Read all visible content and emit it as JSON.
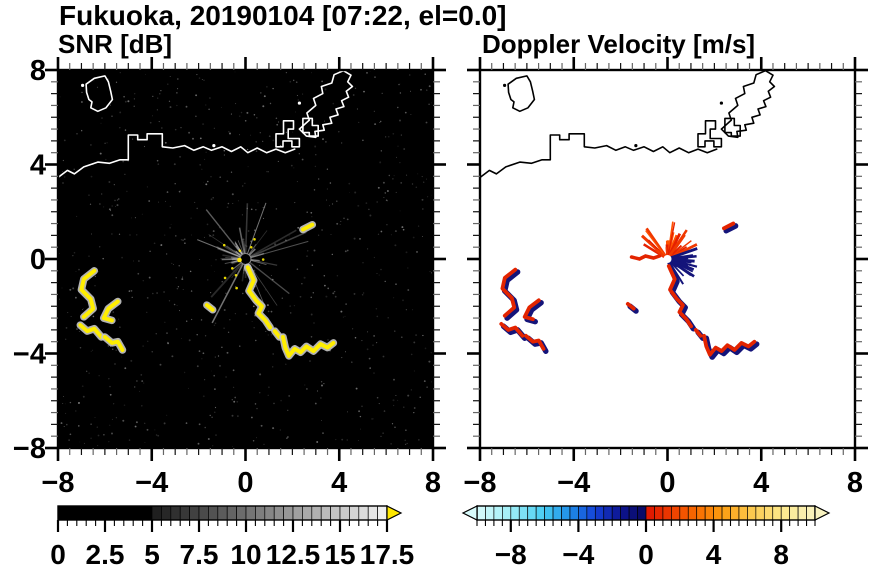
{
  "title": "Fukuoka, 20190104 [07:22, el=0.0]",
  "chart_data": {
    "type": "heatmap",
    "subtype": "radar_ppi_pair",
    "x_range": [
      -8,
      8
    ],
    "y_range": [
      -8,
      8
    ],
    "x_tick_values": [
      -8,
      -4,
      0,
      4,
      8
    ],
    "x_tick_labels": [
      "−8",
      "−4",
      "0",
      "4",
      "8"
    ],
    "y_tick_values": [
      8,
      4,
      0,
      -4,
      -8
    ],
    "y_tick_labels": [
      "8",
      "4",
      "0",
      "−4",
      "−8"
    ],
    "minor_tick_step": 0.5,
    "grid": false,
    "panels": [
      {
        "id": "snr",
        "title": "SNR [dB]",
        "background": "#000000",
        "coast_color": "#ffffff",
        "colorbar": {
          "min": 0,
          "max": 17.5,
          "cell_step": 0.5,
          "major_every": 2.5,
          "tick_values": [
            0,
            2.5,
            5,
            7.5,
            10,
            12.5,
            15,
            17.5
          ],
          "tick_labels": [
            "0",
            "2.5",
            "5",
            "7.5",
            "10",
            "12.5",
            "15",
            "17.5"
          ],
          "stops": [
            [
              0,
              "#000000"
            ],
            [
              4.9,
              "#000000"
            ],
            [
              5.1,
              "#1c1c1c"
            ],
            [
              17.5,
              "#f2f2f2"
            ]
          ],
          "over_color": "#ffe800",
          "arrows": "right"
        }
      },
      {
        "id": "velocity",
        "title": "Doppler Velocity [m/s]",
        "background": "#ffffff",
        "coast_color": "#000000",
        "colorbar": {
          "min": -10,
          "max": 10,
          "cell_step": 0.5,
          "major_every": 4,
          "tick_values": [
            -8,
            -4,
            0,
            4,
            8
          ],
          "tick_labels": [
            "−8",
            "−4",
            "0",
            "4",
            "8"
          ],
          "stops": [
            [
              -10,
              "#d8fbfb"
            ],
            [
              -8,
              "#9feef6"
            ],
            [
              -6,
              "#45ccf2"
            ],
            [
              -4.5,
              "#1e8ce8"
            ],
            [
              -3,
              "#1440d8"
            ],
            [
              -1.5,
              "#0d1490"
            ],
            [
              -0.05,
              "#0a0a62"
            ],
            [
              0.05,
              "#de1400"
            ],
            [
              1.5,
              "#ee3c00"
            ],
            [
              3,
              "#f86c00"
            ],
            [
              4.5,
              "#fb9c10"
            ],
            [
              6,
              "#fcc445"
            ],
            [
              8,
              "#fde88a"
            ],
            [
              10,
              "#f8f2c0"
            ]
          ],
          "arrows": "both"
        }
      }
    ],
    "radar_center": [
      0,
      0
    ],
    "echo_tracks": [
      {
        "name": "west-track-1",
        "points": [
          [
            -6.45,
            -0.5
          ],
          [
            -6.9,
            -0.85
          ],
          [
            -7.0,
            -1.3
          ],
          [
            -6.6,
            -1.7
          ],
          [
            -6.5,
            -2.1
          ],
          [
            -6.9,
            -2.45
          ]
        ]
      },
      {
        "name": "west-track-2",
        "points": [
          [
            -5.45,
            -1.8
          ],
          [
            -5.85,
            -2.1
          ],
          [
            -6.05,
            -2.5
          ],
          [
            -5.7,
            -2.6
          ]
        ]
      },
      {
        "name": "west-track-3",
        "points": [
          [
            -7.05,
            -2.8
          ],
          [
            -6.75,
            -3.05
          ],
          [
            -6.45,
            -2.95
          ],
          [
            -6.15,
            -3.3
          ]
        ]
      },
      {
        "name": "west-track-4",
        "points": [
          [
            -6.0,
            -3.3
          ],
          [
            -5.7,
            -3.55
          ],
          [
            -5.45,
            -3.5
          ],
          [
            -5.25,
            -3.85
          ]
        ]
      },
      {
        "name": "center-track",
        "points": [
          [
            0.1,
            -0.35
          ],
          [
            0.35,
            -0.9
          ],
          [
            0.15,
            -1.35
          ],
          [
            0.45,
            -1.75
          ],
          [
            0.7,
            -2.0
          ],
          [
            0.55,
            -2.3
          ],
          [
            0.85,
            -2.6
          ],
          [
            1.05,
            -2.9
          ]
        ]
      },
      {
        "name": "center-track-tail",
        "points": [
          [
            1.25,
            -3.05
          ],
          [
            1.45,
            -3.3
          ]
        ]
      },
      {
        "name": "southeast-track",
        "points": [
          [
            1.6,
            -3.3
          ],
          [
            1.7,
            -3.75
          ],
          [
            1.85,
            -4.1
          ],
          [
            2.1,
            -3.8
          ],
          [
            2.35,
            -3.95
          ],
          [
            2.6,
            -3.7
          ],
          [
            2.9,
            -3.9
          ],
          [
            3.2,
            -3.6
          ],
          [
            3.5,
            -3.75
          ],
          [
            3.75,
            -3.55
          ]
        ]
      },
      {
        "name": "small-echo-sw",
        "points": [
          [
            -1.65,
            -1.95
          ],
          [
            -1.4,
            -2.15
          ]
        ]
      },
      {
        "name": "small-echo-ne",
        "points": [
          [
            2.45,
            1.25
          ],
          [
            2.85,
            1.45
          ]
        ]
      }
    ],
    "coastline": {
      "mainland": [
        [
          -8,
          3.45
        ],
        [
          -7.6,
          3.75
        ],
        [
          -7.3,
          3.6
        ],
        [
          -6.9,
          3.9
        ],
        [
          -6.3,
          4.1
        ],
        [
          -5.8,
          4.05
        ],
        [
          -5.35,
          4.2
        ],
        [
          -5.0,
          4.2
        ],
        [
          -5.0,
          5.25
        ],
        [
          -4.6,
          5.25
        ],
        [
          -4.6,
          5.05
        ],
        [
          -4.2,
          5.05
        ],
        [
          -4.2,
          5.3
        ],
        [
          -3.55,
          5.3
        ],
        [
          -3.55,
          4.75
        ],
        [
          -3.1,
          4.7
        ],
        [
          -2.6,
          4.8
        ],
        [
          -2.2,
          4.6
        ],
        [
          -1.8,
          4.75
        ],
        [
          -1.45,
          4.6
        ],
        [
          -1.0,
          4.75
        ],
        [
          -0.6,
          4.55
        ],
        [
          -0.2,
          4.75
        ],
        [
          0.1,
          4.5
        ],
        [
          0.5,
          4.7
        ],
        [
          0.9,
          4.5
        ],
        [
          1.3,
          4.65
        ],
        [
          1.7,
          4.5
        ],
        [
          2.1,
          4.65
        ]
      ],
      "island": [
        [
          -6.0,
          7.75
        ],
        [
          -6.45,
          7.65
        ],
        [
          -6.8,
          7.4
        ],
        [
          -6.78,
          7.05
        ],
        [
          -6.68,
          6.75
        ],
        [
          -6.55,
          6.65
        ],
        [
          -6.6,
          6.4
        ],
        [
          -6.3,
          6.25
        ],
        [
          -5.95,
          6.4
        ],
        [
          -5.68,
          6.75
        ],
        [
          -5.75,
          7.1
        ],
        [
          -5.85,
          7.5
        ]
      ],
      "port_blocks": [
        [
          [
            1.3,
            4.75
          ],
          [
            1.3,
            5.3
          ],
          [
            1.62,
            5.3
          ],
          [
            1.62,
            5.85
          ],
          [
            2.05,
            5.85
          ],
          [
            2.05,
            5.5
          ],
          [
            1.82,
            5.5
          ],
          [
            1.82,
            5.1
          ],
          [
            2.3,
            5.1
          ],
          [
            2.3,
            4.75
          ],
          [
            1.98,
            4.75
          ],
          [
            1.98,
            5.0
          ],
          [
            1.6,
            5.0
          ],
          [
            1.6,
            4.75
          ]
        ],
        [
          [
            2.45,
            5.35
          ],
          [
            2.45,
            5.95
          ],
          [
            2.85,
            5.95
          ],
          [
            2.85,
            5.65
          ],
          [
            3.1,
            5.65
          ],
          [
            3.1,
            5.2
          ],
          [
            2.72,
            5.2
          ],
          [
            2.72,
            5.35
          ]
        ]
      ],
      "sandbar": [
        [
          2.3,
          5.5
        ],
        [
          2.72,
          5.88
        ],
        [
          2.62,
          6.18
        ],
        [
          3.0,
          6.5
        ],
        [
          2.9,
          6.8
        ],
        [
          3.3,
          7.0
        ],
        [
          3.24,
          7.3
        ],
        [
          3.68,
          7.45
        ],
        [
          3.78,
          7.8
        ],
        [
          4.18,
          7.97
        ],
        [
          4.5,
          7.78
        ],
        [
          4.36,
          7.5
        ],
        [
          4.56,
          7.3
        ],
        [
          4.3,
          7.1
        ],
        [
          4.4,
          6.85
        ],
        [
          4.1,
          6.7
        ],
        [
          4.2,
          6.45
        ],
        [
          3.86,
          6.35
        ],
        [
          3.95,
          6.1
        ],
        [
          3.6,
          6.0
        ],
        [
          3.68,
          5.75
        ],
        [
          3.3,
          5.68
        ],
        [
          3.36,
          5.45
        ],
        [
          2.96,
          5.4
        ],
        [
          3.0,
          5.15
        ],
        [
          2.6,
          5.2
        ]
      ],
      "islets": [
        [
          -6.95,
          7.35
        ],
        [
          -1.35,
          4.8
        ],
        [
          2.3,
          6.6
        ]
      ]
    },
    "styles": {
      "snr_echo_color": "#ffee00",
      "snr_halo_color": "#c6c6c6",
      "snr_ray_color": "#c8c8c8",
      "snr_center_dot": "#ffe800",
      "vel_positive_color": "#e32400",
      "vel_negative_color": "#14147a",
      "vel_ray_reds": [
        "#f03800",
        "#ff5200",
        "#e52000"
      ]
    }
  }
}
